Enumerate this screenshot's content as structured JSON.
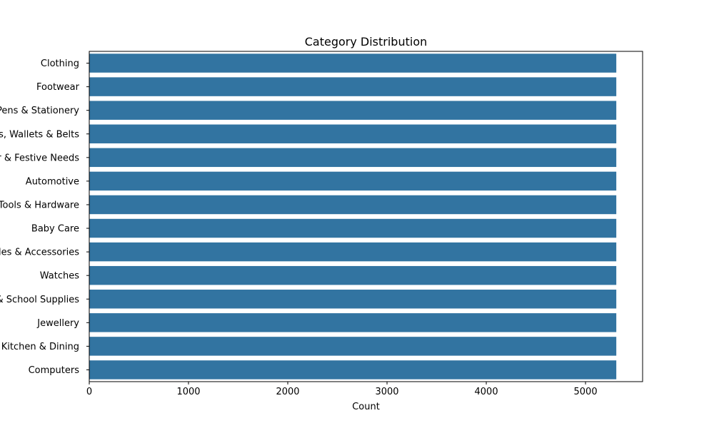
{
  "chart_data": {
    "type": "bar",
    "orientation": "horizontal",
    "title": "Category Distribution",
    "xlabel": "Count",
    "ylabel": "",
    "categories": [
      "Clothing",
      "Footwear",
      "Pens & Stationery",
      "Bags, Wallets & Belts",
      "Home Decor & Festive Needs",
      "Automotive",
      "Tools & Hardware",
      "Baby Care",
      "Mobiles & Accessories",
      "Watches",
      "Toys & School Supplies",
      "Jewellery",
      "Kitchen & Dining",
      "Computers"
    ],
    "values": [
      5310,
      5310,
      5310,
      5310,
      5310,
      5310,
      5310,
      5310,
      5310,
      5310,
      5310,
      5310,
      5310,
      5310
    ],
    "xlim": [
      0,
      5575
    ],
    "xticks": [
      0,
      1000,
      2000,
      3000,
      4000,
      5000
    ],
    "grid": false,
    "bar_color": "#3274a1"
  }
}
